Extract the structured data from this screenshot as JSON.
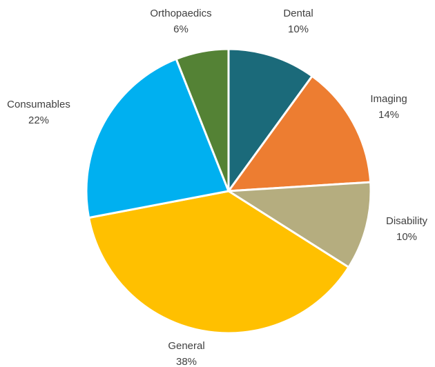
{
  "chart_data": {
    "type": "pie",
    "title": "",
    "legend": "none",
    "slices": [
      {
        "label": "Dental",
        "value": 10,
        "value_label": "10%",
        "color": "#1b6a7a"
      },
      {
        "label": "Imaging",
        "value": 14,
        "value_label": "14%",
        "color": "#ed7d31"
      },
      {
        "label": "Disability",
        "value": 10,
        "value_label": "10%",
        "color": "#b5ad7f"
      },
      {
        "label": "General",
        "value": 38,
        "value_label": "38%",
        "color": "#ffc000"
      },
      {
        "label": "Consumables",
        "value": 22,
        "value_label": "22%",
        "color": "#00b0f0"
      },
      {
        "label": "Orthopaedics",
        "value": 6,
        "value_label": "6%",
        "color": "#548235"
      }
    ],
    "start_angle_deg": 0,
    "direction": "clockwise",
    "slice_border_color": "#ffffff"
  }
}
